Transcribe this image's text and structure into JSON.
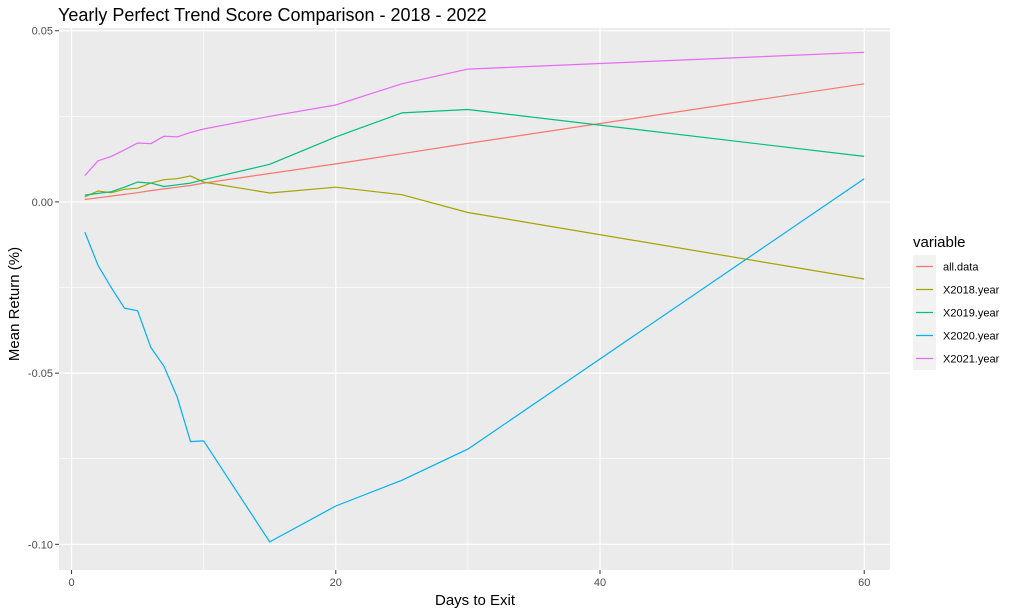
{
  "chart_data": {
    "type": "line",
    "title": "Yearly Perfect Trend Score Comparison - 2018 - 2022",
    "xlabel": "Days to Exit",
    "ylabel": "Mean Return (%)",
    "xlim": [
      -0.95,
      61.95
    ],
    "ylim": [
      -0.1075,
      0.0508
    ],
    "x_ticks": [
      0,
      20,
      40,
      60
    ],
    "x_tick_labels": [
      "0",
      "20",
      "40",
      "60"
    ],
    "y_ticks": [
      -0.1,
      -0.05,
      0.0,
      0.05
    ],
    "y_tick_labels": [
      "-0.10",
      "-0.05",
      "0.00",
      "0.05"
    ],
    "grid": true,
    "legend": {
      "title": "variable",
      "position": "right"
    },
    "series": [
      {
        "name": "all.data",
        "color": "#F8766D",
        "x": [
          1,
          2,
          3,
          4,
          5,
          6,
          7,
          8,
          9,
          10,
          15,
          20,
          25,
          30,
          60
        ],
        "y": [
          0.0007,
          0.0012,
          0.0017,
          0.0022,
          0.0027,
          0.0033,
          0.0038,
          0.0043,
          0.0048,
          0.0055,
          0.0083,
          0.0111,
          0.0141,
          0.0171,
          0.0345
        ]
      },
      {
        "name": "X2018.year",
        "color": "#A3A500",
        "x": [
          1,
          2,
          3,
          4,
          5,
          6,
          7,
          8,
          9,
          10,
          15,
          20,
          25,
          30,
          60
        ],
        "y": [
          0.0015,
          0.0032,
          0.0027,
          0.0037,
          0.004,
          0.0055,
          0.0065,
          0.0068,
          0.0076,
          0.0058,
          0.0026,
          0.0043,
          0.0021,
          -0.0031,
          -0.0225
        ]
      },
      {
        "name": "X2019.year",
        "color": "#00BF7D",
        "x": [
          1,
          2,
          3,
          4,
          5,
          6,
          7,
          8,
          9,
          10,
          15,
          20,
          25,
          30,
          60
        ],
        "y": [
          0.002,
          0.0025,
          0.003,
          0.0043,
          0.0058,
          0.0055,
          0.0045,
          0.005,
          0.0055,
          0.0065,
          0.011,
          0.019,
          0.026,
          0.027,
          0.0133
        ]
      },
      {
        "name": "X2020.year",
        "color": "#00B0F6",
        "x": [
          1,
          2,
          3,
          4,
          5,
          6,
          7,
          8,
          9,
          10,
          15,
          20,
          25,
          30,
          60
        ],
        "y": [
          -0.0088,
          -0.0185,
          -0.025,
          -0.031,
          -0.0318,
          -0.0425,
          -0.048,
          -0.057,
          -0.07,
          -0.0698,
          -0.0993,
          -0.0888,
          -0.0813,
          -0.0722,
          0.0068
        ]
      },
      {
        "name": "X2021.year",
        "color": "#E76BF3",
        "x": [
          1,
          2,
          3,
          4,
          5,
          6,
          7,
          8,
          9,
          10,
          15,
          20,
          25,
          30,
          60
        ],
        "y": [
          0.0077,
          0.012,
          0.0133,
          0.0152,
          0.0172,
          0.017,
          0.0192,
          0.019,
          0.0203,
          0.0213,
          0.025,
          0.0283,
          0.0345,
          0.0388,
          0.0437
        ]
      }
    ]
  }
}
